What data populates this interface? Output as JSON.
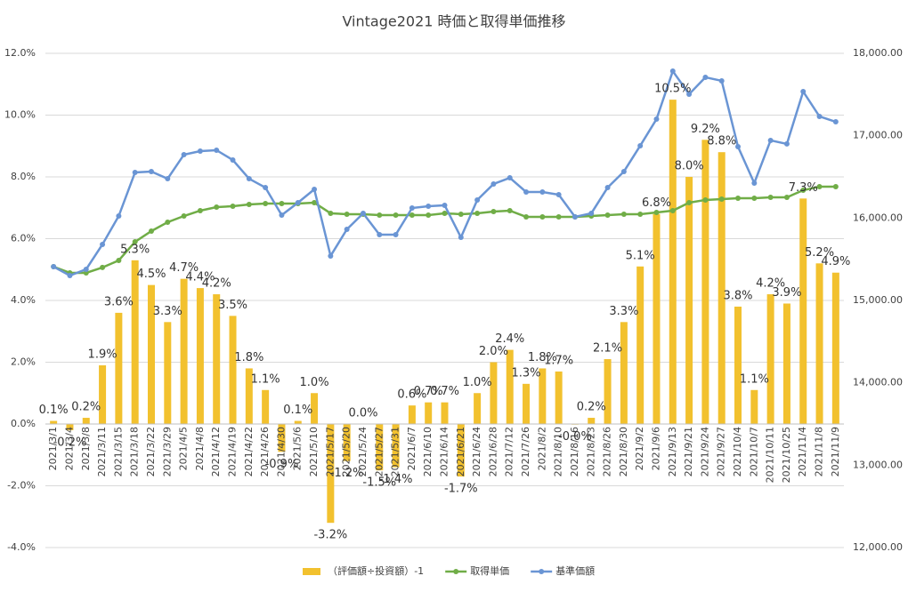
{
  "chart_data": {
    "type": "bar_line_combo",
    "title": "Vintage2021 時価と取得単価推移",
    "categories": [
      "2021/3/1",
      "2021/3/4",
      "2021/3/8",
      "2021/3/11",
      "2021/3/15",
      "2021/3/18",
      "2021/3/22",
      "2021/3/29",
      "2021/4/5",
      "2021/4/8",
      "2021/4/12",
      "2021/4/19",
      "2021/4/22",
      "2021/4/26",
      "2021/4/30",
      "2021/5/6",
      "2021/5/10",
      "2021/5/17",
      "2021/5/20",
      "2021/5/24",
      "2021/5/27",
      "2021/5/31",
      "2021/6/7",
      "2021/6/10",
      "2021/6/14",
      "2021/6/21",
      "2021/6/24",
      "2021/6/28",
      "2021/7/12",
      "2021/7/26",
      "2021/8/2",
      "2021/8/10",
      "2021/8/16",
      "2021/8/23",
      "2021/8/26",
      "2021/8/30",
      "2021/9/2",
      "2021/9/6",
      "2021/9/13",
      "2021/9/21",
      "2021/9/24",
      "2021/9/27",
      "2021/10/4",
      "2021/10/7",
      "2021/10/11",
      "2021/10/25",
      "2021/11/4",
      "2021/11/8",
      "2021/11/9"
    ],
    "series": [
      {
        "name": "（評価額÷投資額）-1",
        "type": "bar",
        "color": "#f2c12e",
        "values": [
          0.1,
          -0.2,
          0.2,
          1.9,
          3.6,
          5.3,
          4.5,
          3.3,
          4.7,
          4.4,
          4.2,
          3.5,
          1.8,
          1.1,
          -0.9,
          0.1,
          1.0,
          -3.2,
          -1.2,
          0.0,
          -1.5,
          -1.4,
          0.6,
          0.7,
          0.7,
          -1.7,
          1.0,
          2.0,
          2.4,
          1.3,
          1.8,
          1.7,
          -0.02,
          0.2,
          2.1,
          3.3,
          5.1,
          6.8,
          10.5,
          8.0,
          9.2,
          8.8,
          3.8,
          1.1,
          4.2,
          3.9,
          7.3,
          5.2,
          4.9
        ],
        "value_labels": [
          "0.1%",
          "-0.2%",
          "0.2%",
          "1.9%",
          "3.6%",
          "5.3%",
          "4.5%",
          "3.3%",
          "4.7%",
          "4.4%",
          "4.2%",
          "3.5%",
          "1.8%",
          "1.1%",
          "-0.9%",
          "0.1%",
          "1.0%",
          "-3.2%",
          "-1.2%",
          "0.0%",
          "-1.5%",
          "-1.4%",
          "0.6%",
          "0.7%",
          "0.7%",
          "-1.7%",
          "1.0%",
          "2.0%",
          "2.4%",
          "1.3%",
          "1.8%",
          "1.7%",
          "-0.0%",
          "0.2%",
          "2.1%",
          "3.3%",
          "5.1%",
          "6.8%",
          "10.5%",
          "8.0%",
          "9.2%",
          "8.8%",
          "3.8%",
          "1.1%",
          "4.2%",
          "3.9%",
          "7.3%",
          "5.2%",
          "4.9%"
        ]
      },
      {
        "name": "取得単価",
        "type": "line",
        "axis": "y2",
        "color": "#70ad47",
        "values": [
          15410,
          15335,
          15335,
          15400,
          15486,
          15712,
          15842,
          15950,
          16025,
          16090,
          16133,
          16144,
          16166,
          16176,
          16176,
          16176,
          16187,
          16058,
          16047,
          16047,
          16036,
          16036,
          16036,
          16036,
          16058,
          16047,
          16058,
          16079,
          16090,
          16015,
          16015,
          16015,
          16015,
          16025,
          16036,
          16047,
          16047,
          16068,
          16090,
          16187,
          16220,
          16230,
          16241,
          16241,
          16252,
          16252,
          16338,
          16381,
          16381
        ]
      },
      {
        "name": "基準価額",
        "type": "line",
        "axis": "y2",
        "color": "#6a95d4",
        "values": [
          15410,
          15302,
          15378,
          15680,
          16025,
          16554,
          16565,
          16478,
          16770,
          16813,
          16824,
          16705,
          16478,
          16370,
          16036,
          16187,
          16349,
          15540,
          15863,
          16058,
          15799,
          15799,
          16122,
          16144,
          16155,
          15766,
          16220,
          16414,
          16489,
          16317,
          16317,
          16284,
          16015,
          16058,
          16370,
          16565,
          16878,
          17201,
          17784,
          17504,
          17709,
          17666,
          16867,
          16425,
          16943,
          16900,
          17536,
          17234,
          17169
        ]
      }
    ],
    "ylim": [
      -4,
      12
    ],
    "yticks": [
      {
        "value": -4,
        "label": "-4.0%"
      },
      {
        "value": -2,
        "label": "-2.0%"
      },
      {
        "value": 0,
        "label": "0.0%"
      },
      {
        "value": 2,
        "label": "2.0%"
      },
      {
        "value": 4,
        "label": "4.0%"
      },
      {
        "value": 6,
        "label": "6.0%"
      },
      {
        "value": 8,
        "label": "8.0%"
      },
      {
        "value": 10,
        "label": "10.0%"
      },
      {
        "value": 12,
        "label": "12.0%"
      }
    ],
    "y2lim": [
      12000,
      18000
    ],
    "y2ticks": [
      {
        "value": 12000,
        "label": "12,000.00"
      },
      {
        "value": 13000,
        "label": "13,000.00"
      },
      {
        "value": 14000,
        "label": "14,000.00"
      },
      {
        "value": 15000,
        "label": "15,000.00"
      },
      {
        "value": 16000,
        "label": "16,000.00"
      },
      {
        "value": 17000,
        "label": "17,000.00"
      },
      {
        "value": 18000,
        "label": "18,000.00"
      }
    ],
    "grid": true,
    "legend": "bottom"
  }
}
